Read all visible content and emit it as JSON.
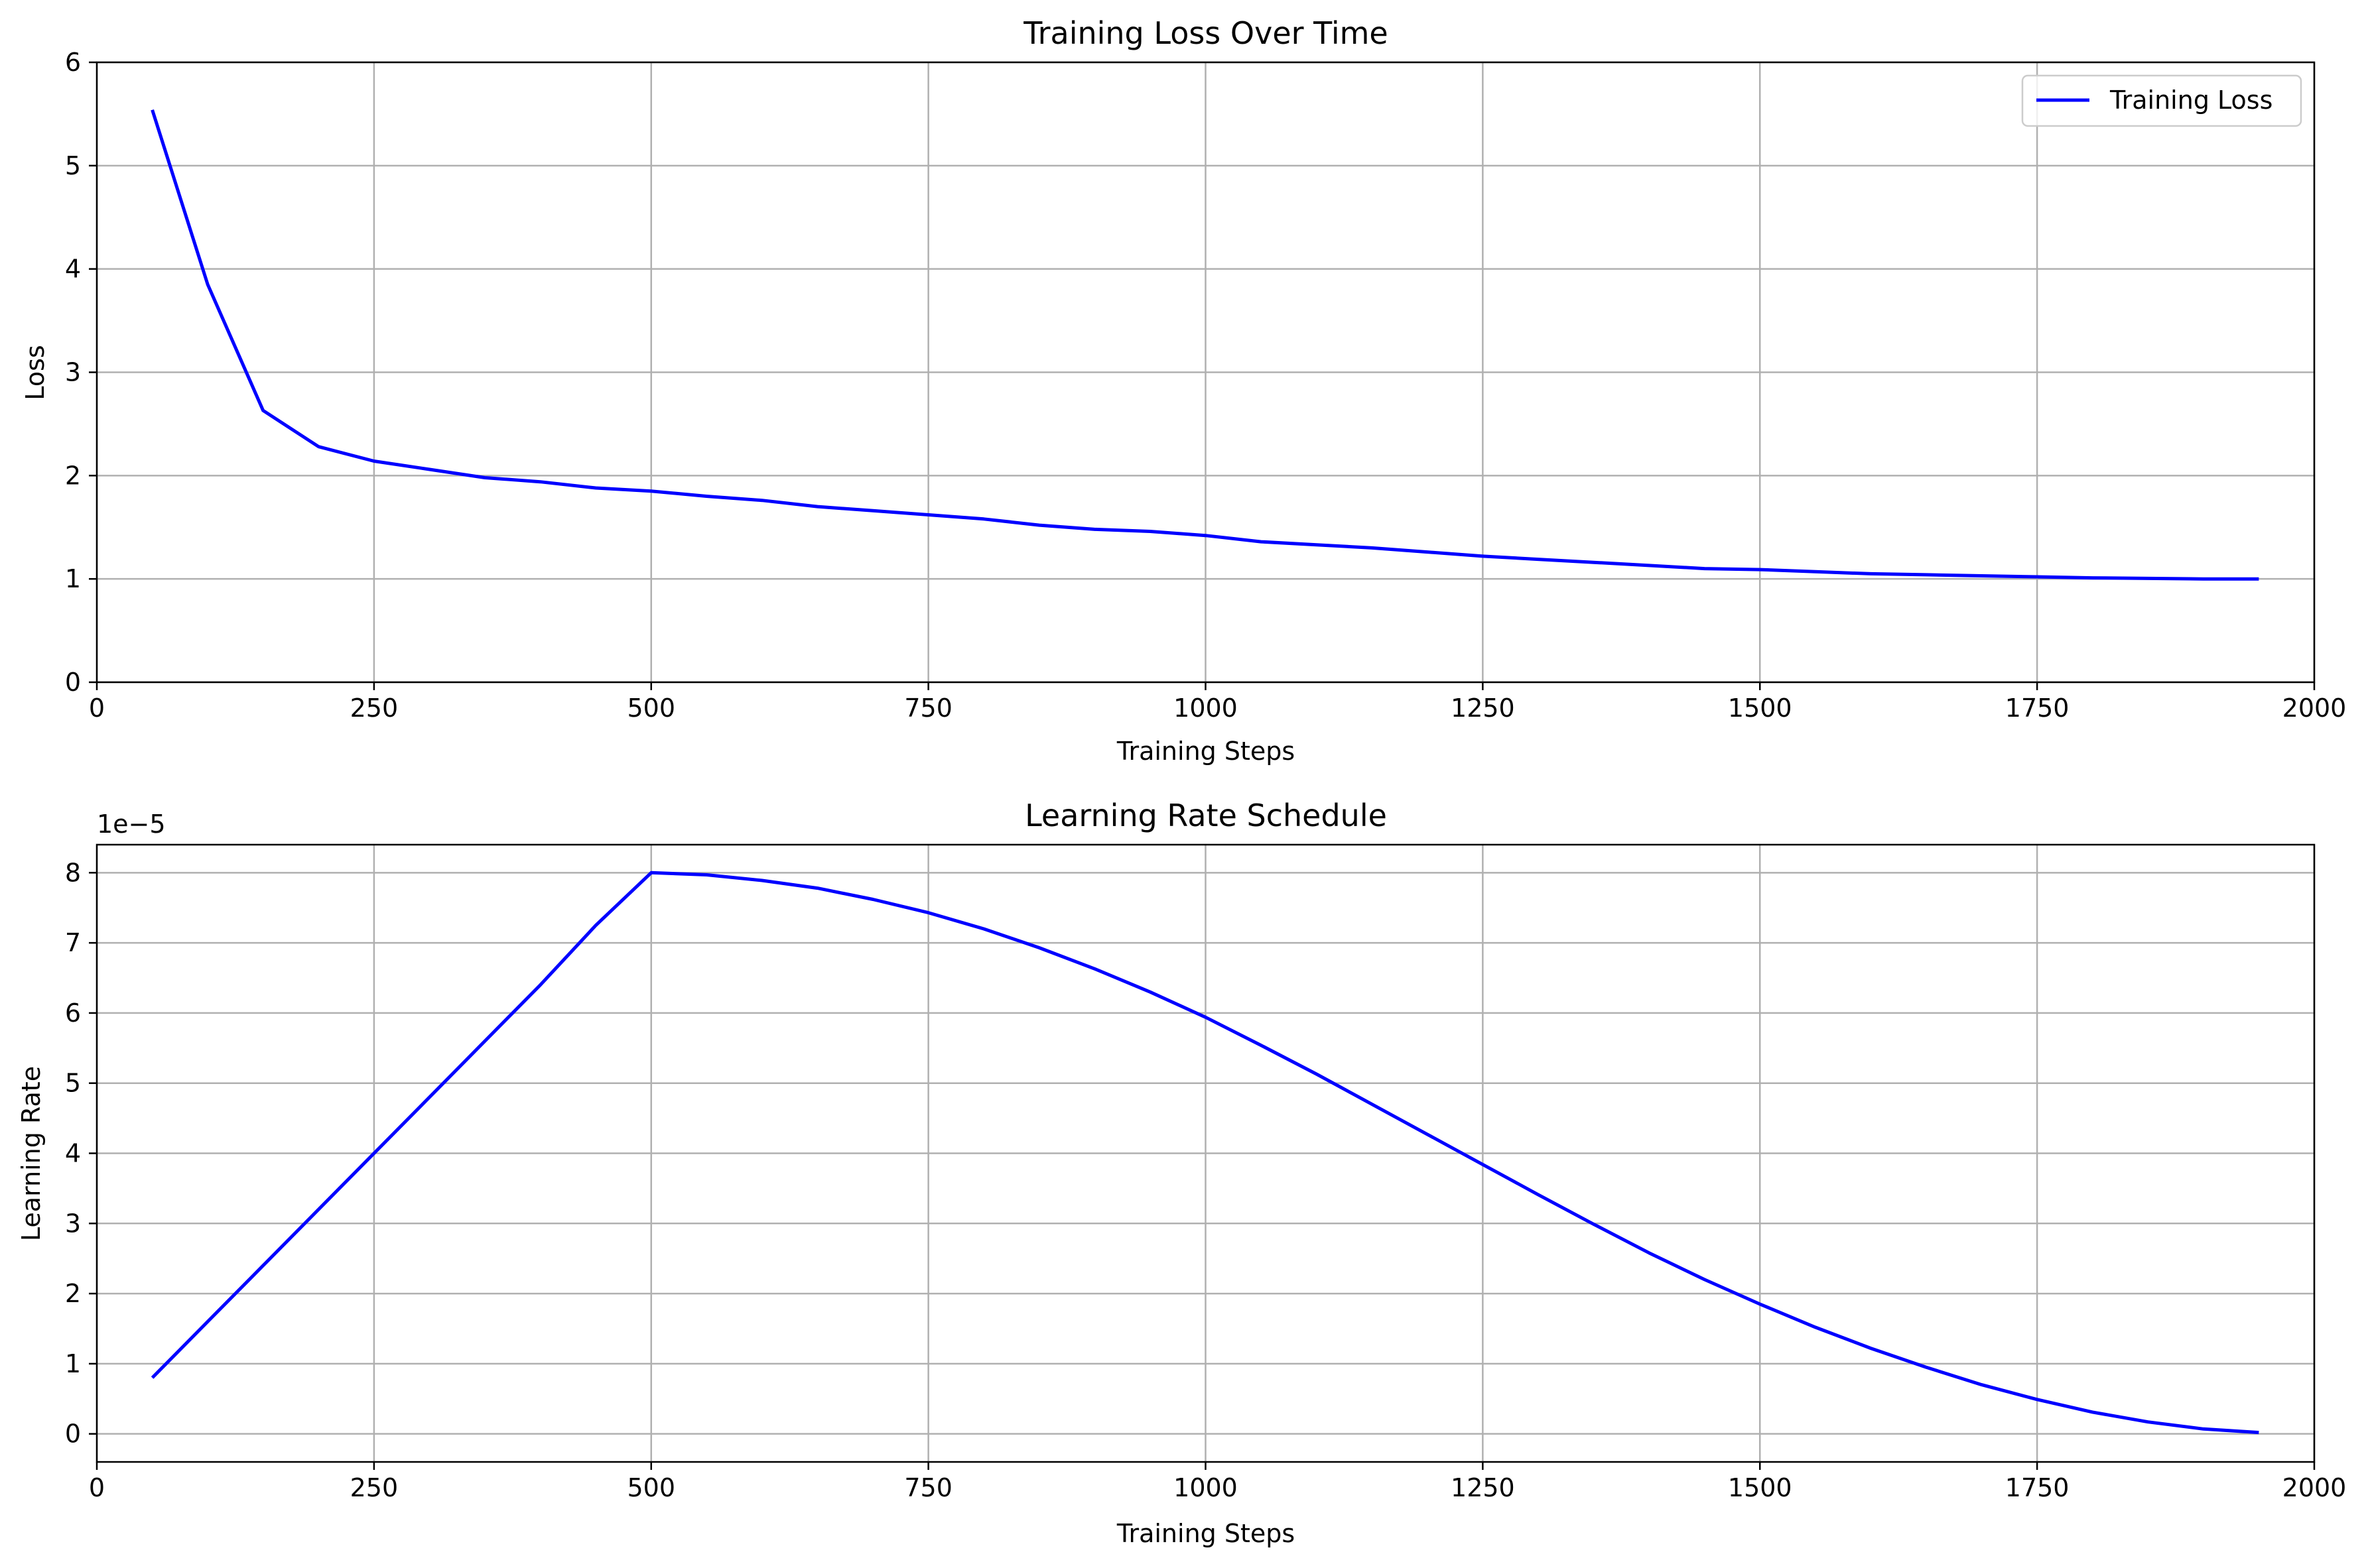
{
  "chart_data": [
    {
      "type": "line",
      "title": "Training Loss Over Time",
      "xlabel": "Training Steps",
      "ylabel": "Loss",
      "xlim": [
        0,
        2000
      ],
      "ylim": [
        0,
        6
      ],
      "grid": true,
      "x_ticks": [
        "0",
        "250",
        "500",
        "750",
        "1000",
        "1250",
        "1500",
        "1750",
        "2000"
      ],
      "y_ticks": [
        "0",
        "1",
        "2",
        "3",
        "4",
        "5",
        "6"
      ],
      "legend_position": "top-right",
      "series": [
        {
          "name": "Training Loss",
          "color": "#0000ff",
          "x": [
            50,
            100,
            150,
            200,
            250,
            300,
            350,
            400,
            450,
            500,
            550,
            600,
            650,
            700,
            750,
            800,
            850,
            900,
            950,
            1000,
            1050,
            1100,
            1150,
            1200,
            1250,
            1300,
            1350,
            1400,
            1450,
            1500,
            1550,
            1600,
            1650,
            1700,
            1750,
            1800,
            1850,
            1900,
            1950
          ],
          "y": [
            5.54,
            3.85,
            2.63,
            2.28,
            2.14,
            2.06,
            1.98,
            1.94,
            1.88,
            1.85,
            1.8,
            1.76,
            1.7,
            1.66,
            1.62,
            1.58,
            1.52,
            1.48,
            1.46,
            1.42,
            1.36,
            1.33,
            1.3,
            1.26,
            1.22,
            1.19,
            1.16,
            1.13,
            1.1,
            1.09,
            1.07,
            1.05,
            1.04,
            1.03,
            1.02,
            1.01,
            1.005,
            1.0,
            1.0
          ]
        }
      ]
    },
    {
      "type": "line",
      "title": "Learning Rate Schedule",
      "xlabel": "Training Steps",
      "ylabel": "Learning Rate",
      "offset_text": "1e−5",
      "xlim": [
        0,
        2000
      ],
      "ylim": [
        -0.4,
        8.4
      ],
      "grid": true,
      "x_ticks": [
        "0",
        "250",
        "500",
        "750",
        "1000",
        "1250",
        "1500",
        "1750",
        "2000"
      ],
      "y_ticks": [
        "0",
        "1",
        "2",
        "3",
        "4",
        "5",
        "6",
        "7",
        "8"
      ],
      "series": [
        {
          "name": "Learning Rate",
          "color": "#0000ff",
          "x": [
            50,
            100,
            150,
            200,
            250,
            300,
            350,
            400,
            450,
            500,
            550,
            600,
            650,
            700,
            750,
            800,
            850,
            900,
            950,
            1000,
            1050,
            1100,
            1150,
            1200,
            1250,
            1300,
            1350,
            1400,
            1450,
            1500,
            1550,
            1600,
            1650,
            1700,
            1750,
            1800,
            1850,
            1900,
            1950
          ],
          "y": [
            0.8,
            1.6,
            2.4,
            3.2,
            4.0,
            4.8,
            5.6,
            6.4,
            7.25,
            8.0,
            7.97,
            7.89,
            7.78,
            7.62,
            7.43,
            7.2,
            6.93,
            6.63,
            6.3,
            5.94,
            5.54,
            5.13,
            4.7,
            4.27,
            3.84,
            3.41,
            2.99,
            2.58,
            2.2,
            1.85,
            1.52,
            1.22,
            0.95,
            0.7,
            0.49,
            0.31,
            0.17,
            0.07,
            0.02
          ]
        }
      ]
    }
  ]
}
